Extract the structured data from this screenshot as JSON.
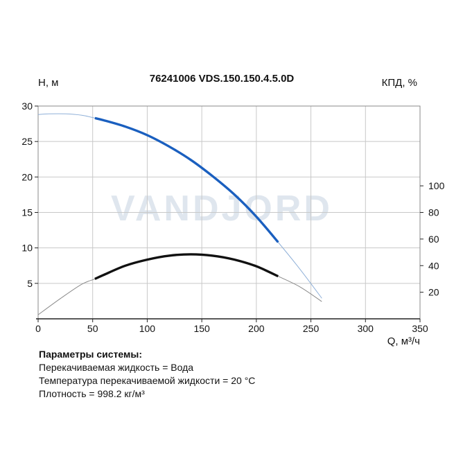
{
  "chart_data": {
    "type": "line",
    "title": "76241006 VDS.150.150.4.5.0D",
    "ylabel_left": "H, м",
    "ylabel_right": "КПД, %",
    "xlabel": "Q, м³/ч",
    "xlim": [
      0,
      350
    ],
    "ylim_left": [
      0,
      30
    ],
    "ylim_right": [
      0,
      160
    ],
    "x_ticks": [
      0,
      50,
      100,
      150,
      200,
      250,
      300,
      350
    ],
    "y_ticks_left": [
      5,
      10,
      15,
      20,
      25,
      30
    ],
    "y_ticks_right": [
      20,
      40,
      60,
      80,
      100
    ],
    "grid": true,
    "watermark": "VANDJORD",
    "series": [
      {
        "role": "head",
        "axis": "left",
        "color": "#1a5fbf",
        "x": [
          0,
          10,
          25,
          40,
          52,
          60,
          80,
          100,
          120,
          140,
          160,
          180,
          200,
          220,
          240,
          260
        ],
        "y": [
          28.8,
          28.9,
          28.9,
          28.7,
          28.3,
          28.0,
          27.1,
          25.9,
          24.3,
          22.4,
          20.1,
          17.5,
          14.4,
          10.8,
          7.0,
          2.9
        ],
        "operating_range": [
          52,
          220
        ]
      },
      {
        "role": "efficiency",
        "axis": "right",
        "color": "#111111",
        "x": [
          0,
          20,
          40,
          52,
          60,
          80,
          100,
          120,
          140,
          160,
          180,
          200,
          220,
          240,
          260
        ],
        "y": [
          3,
          15,
          26,
          30,
          33,
          40,
          44.5,
          47.5,
          48.5,
          47.5,
          44.5,
          39.5,
          32,
          24,
          13
        ],
        "operating_range": [
          52,
          220
        ]
      }
    ]
  },
  "params": {
    "title": "Параметры системы:",
    "lines": [
      "Перекачиваемая жидкость = Вода",
      "Температура перекачиваемой жидкости = 20 °C",
      "Плотность = 998.2 кг/м³"
    ]
  }
}
